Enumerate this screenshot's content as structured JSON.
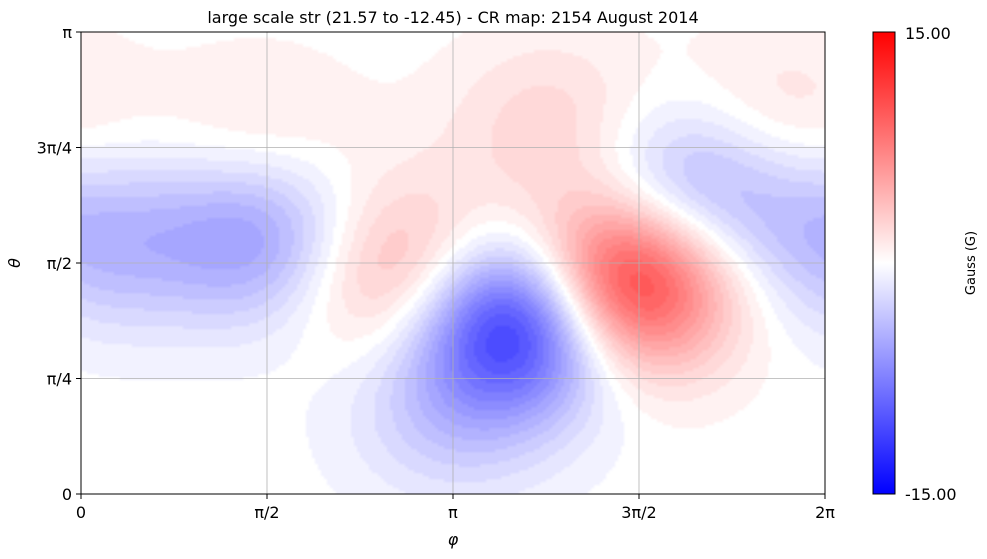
{
  "chart_data": {
    "type": "heatmap",
    "title": "large scale str (21.57 to -12.45) - CR map: 2154 August 2014",
    "xlabel": "φ",
    "ylabel": "θ",
    "xlim": [
      0,
      6.2832
    ],
    "ylim": [
      0,
      3.1416
    ],
    "x_ticks": [
      {
        "value": 0,
        "label": "0"
      },
      {
        "value": 1.5708,
        "label": "π/2"
      },
      {
        "value": 3.1416,
        "label": "π"
      },
      {
        "value": 4.7124,
        "label": "3π/2"
      },
      {
        "value": 6.2832,
        "label": "2π"
      }
    ],
    "y_ticks": [
      {
        "value": 0,
        "label": "0"
      },
      {
        "value": 0.7854,
        "label": "π/4"
      },
      {
        "value": 1.5708,
        "label": "π/2"
      },
      {
        "value": 2.3562,
        "label": "3π/4"
      },
      {
        "value": 3.1416,
        "label": "π"
      }
    ],
    "grid": true,
    "colormap": {
      "name": "bwr",
      "min_color": "#0000ff",
      "mid_color": "#ffffff",
      "max_color": "#ff0000",
      "vmin": -15.0,
      "vmax": 15.0,
      "label": "Gauss (G)",
      "min_label": "-15.00",
      "max_label": "15.00"
    },
    "features": [
      {
        "phi": 4.55,
        "theta": 1.43,
        "value": 15.0
      },
      {
        "phi": 3.72,
        "theta": 1.2,
        "value": -15.0
      },
      {
        "phi": 2.75,
        "theta": 1.5,
        "value": 6.0
      },
      {
        "phi": 1.5,
        "theta": 1.76,
        "value": -6.0
      },
      {
        "phi": 5.18,
        "theta": 2.08,
        "value": -6.0
      },
      {
        "phi": 3.14,
        "theta": 0.55,
        "value": -3.0
      },
      {
        "phi": 0.15,
        "theta": 1.72,
        "value": -4.0
      },
      {
        "phi": 4.0,
        "theta": 2.5,
        "value": 2.5
      },
      {
        "phi": 5.8,
        "theta": 2.5,
        "value": 2.5
      },
      {
        "phi": 1.5,
        "theta": 2.35,
        "value": 2.0
      }
    ]
  }
}
